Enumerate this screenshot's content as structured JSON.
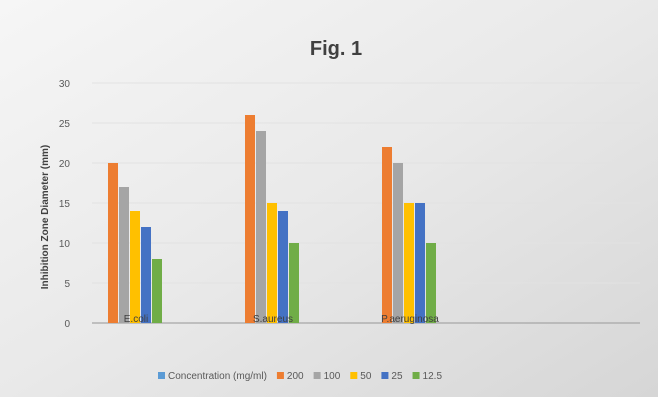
{
  "chart_data": {
    "type": "bar",
    "title": "Fig. 1",
    "ylabel": "Inhibition Zone Diameter (mm)",
    "xlabel": "",
    "ylim": [
      0,
      30
    ],
    "yticks": [
      0,
      5,
      10,
      15,
      20,
      25,
      30
    ],
    "grid": true,
    "legend_position": "bottom",
    "categories": [
      "E.coli",
      "S.aureus",
      "P.aeruginosa"
    ],
    "series": [
      {
        "name": "Concentration (mg/ml)",
        "color": "#5B9BD5",
        "values": [
          0,
          0,
          0
        ]
      },
      {
        "name": "200",
        "color": "#ED7D31",
        "values": [
          20,
          26,
          22
        ]
      },
      {
        "name": "100",
        "color": "#A5A5A5",
        "values": [
          17,
          24,
          20
        ]
      },
      {
        "name": "50",
        "color": "#FFC000",
        "values": [
          14,
          15,
          15
        ]
      },
      {
        "name": "25",
        "color": "#4472C4",
        "values": [
          12,
          14,
          15
        ]
      },
      {
        "name": "12.5",
        "color": "#70AD47",
        "values": [
          8,
          10,
          10
        ]
      }
    ]
  }
}
